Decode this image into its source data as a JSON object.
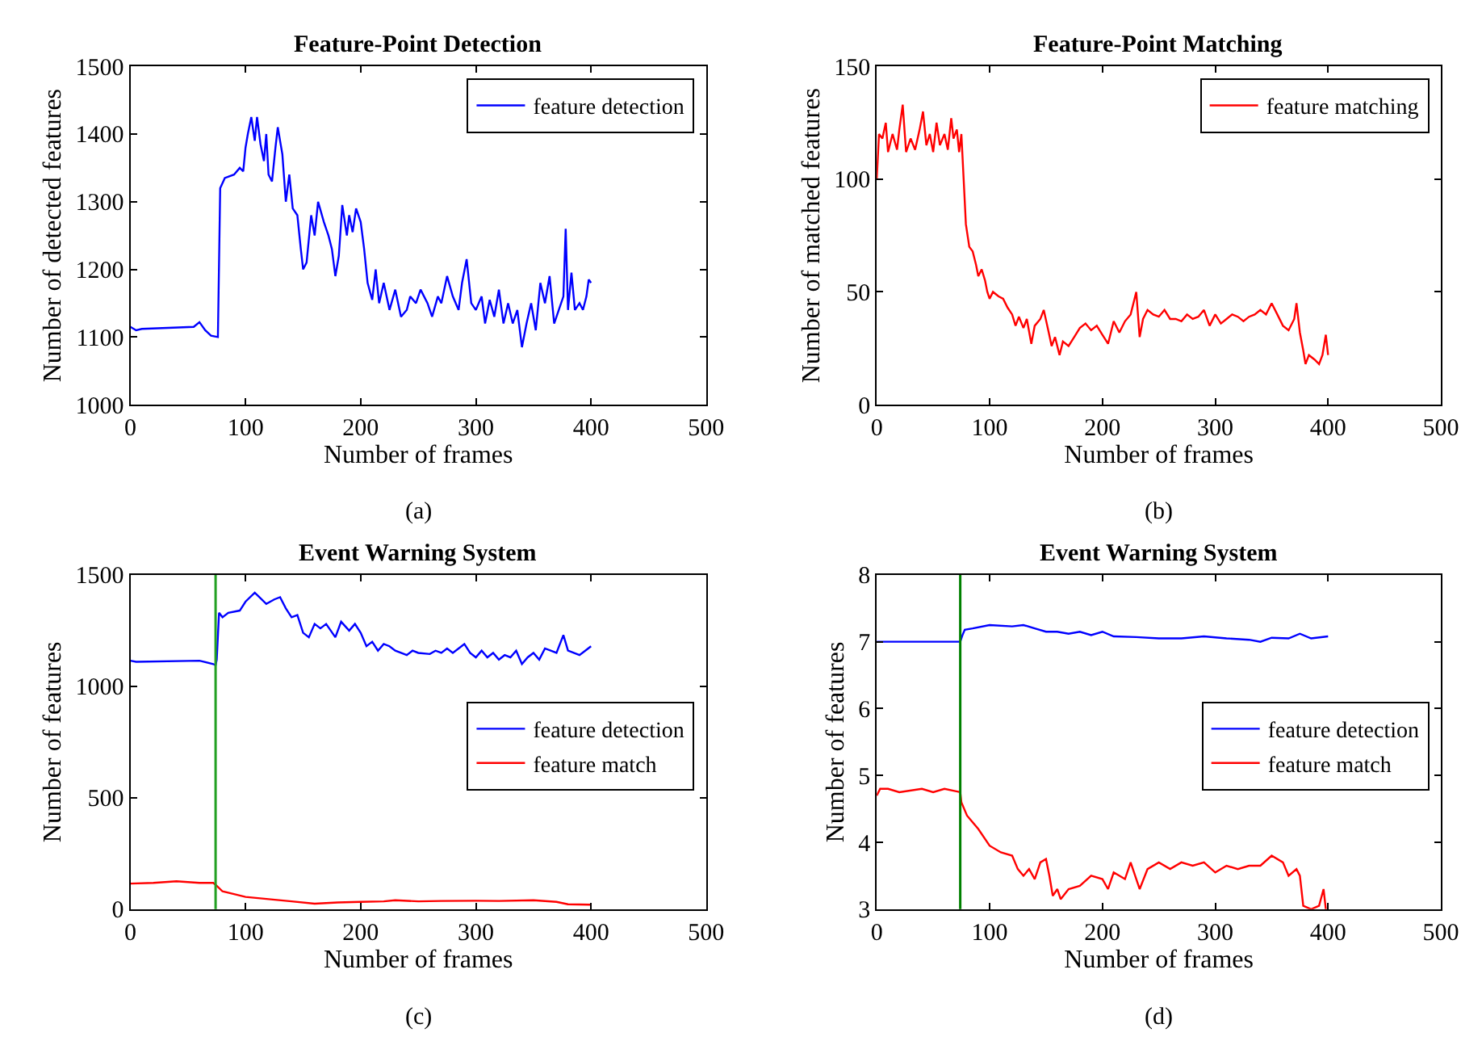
{
  "chart_data": [
    {
      "type": "line",
      "title": "Feature-Point Detection",
      "xlabel": "Number of frames",
      "ylabel": "Number of detected features",
      "annotations": [
        "(a)"
      ],
      "xlim": [
        0,
        500
      ],
      "xticks": [
        0,
        100,
        200,
        300,
        400,
        500
      ],
      "ylim": [
        1000,
        1500
      ],
      "yticks": [
        1000,
        1100,
        1200,
        1300,
        1400,
        1500
      ],
      "legend": "top right",
      "series": [
        {
          "name": "feature detection",
          "color": "#0000ff",
          "x": [
            0,
            5,
            10,
            55,
            60,
            65,
            70,
            76,
            78,
            82,
            90,
            95,
            98,
            100,
            102,
            105,
            108,
            110,
            113,
            116,
            118,
            120,
            123,
            126,
            128,
            132,
            135,
            138,
            141,
            145,
            148,
            150,
            153,
            157,
            160,
            163,
            168,
            172,
            175,
            178,
            181,
            184,
            188,
            190,
            193,
            196,
            200,
            203,
            206,
            210,
            213,
            216,
            220,
            225,
            230,
            235,
            240,
            243,
            248,
            252,
            258,
            262,
            267,
            270,
            275,
            280,
            285,
            288,
            292,
            296,
            300,
            305,
            308,
            312,
            316,
            320,
            324,
            328,
            332,
            336,
            340,
            344,
            348,
            352,
            356,
            360,
            364,
            368,
            372,
            376,
            378,
            380,
            383,
            386,
            390,
            393,
            396,
            398,
            400
          ],
          "values": [
            1115,
            1110,
            1112,
            1115,
            1122,
            1110,
            1102,
            1100,
            1320,
            1335,
            1340,
            1350,
            1345,
            1380,
            1400,
            1425,
            1390,
            1425,
            1385,
            1360,
            1400,
            1340,
            1330,
            1380,
            1410,
            1370,
            1300,
            1340,
            1290,
            1280,
            1230,
            1200,
            1210,
            1280,
            1250,
            1300,
            1270,
            1250,
            1230,
            1190,
            1220,
            1295,
            1250,
            1280,
            1255,
            1290,
            1270,
            1230,
            1180,
            1155,
            1200,
            1150,
            1180,
            1140,
            1170,
            1130,
            1140,
            1160,
            1150,
            1170,
            1150,
            1130,
            1160,
            1150,
            1190,
            1160,
            1140,
            1180,
            1215,
            1150,
            1140,
            1160,
            1120,
            1155,
            1130,
            1170,
            1120,
            1150,
            1120,
            1140,
            1085,
            1120,
            1150,
            1110,
            1180,
            1150,
            1190,
            1120,
            1140,
            1160,
            1260,
            1140,
            1195,
            1140,
            1150,
            1140,
            1160,
            1185,
            1180
          ]
        }
      ]
    },
    {
      "type": "line",
      "title": "Feature-Point Matching",
      "xlabel": "Number of frames",
      "ylabel": "Number of matched features",
      "annotations": [
        "(b)"
      ],
      "xlim": [
        0,
        500
      ],
      "xticks": [
        0,
        100,
        200,
        300,
        400,
        500
      ],
      "ylim": [
        0,
        150
      ],
      "yticks": [
        0,
        50,
        100,
        150
      ],
      "legend": "top right",
      "series": [
        {
          "name": "feature matching",
          "color": "#ff0000",
          "x": [
            0,
            2,
            5,
            8,
            10,
            14,
            18,
            20,
            23,
            26,
            30,
            34,
            38,
            41,
            44,
            47,
            50,
            53,
            56,
            60,
            63,
            66,
            68,
            71,
            73,
            75,
            77,
            79,
            82,
            85,
            88,
            90,
            93,
            96,
            98,
            100,
            103,
            108,
            112,
            116,
            120,
            123,
            126,
            130,
            133,
            137,
            140,
            145,
            148,
            152,
            155,
            158,
            162,
            165,
            170,
            175,
            180,
            185,
            190,
            195,
            200,
            205,
            210,
            215,
            220,
            225,
            230,
            233,
            236,
            240,
            245,
            250,
            255,
            260,
            265,
            270,
            275,
            280,
            285,
            290,
            295,
            300,
            305,
            310,
            315,
            320,
            325,
            330,
            335,
            340,
            345,
            350,
            355,
            360,
            365,
            370,
            372,
            375,
            378,
            380,
            383,
            388,
            392,
            395,
            398,
            400
          ],
          "values": [
            100,
            120,
            118,
            125,
            112,
            120,
            113,
            122,
            133,
            112,
            118,
            113,
            122,
            130,
            115,
            120,
            112,
            125,
            115,
            120,
            113,
            127,
            118,
            122,
            112,
            120,
            100,
            80,
            70,
            68,
            62,
            57,
            60,
            55,
            50,
            47,
            50,
            48,
            47,
            43,
            40,
            35,
            39,
            34,
            38,
            27,
            35,
            38,
            42,
            33,
            26,
            30,
            22,
            28,
            26,
            30,
            34,
            36,
            33,
            35,
            31,
            27,
            37,
            32,
            37,
            40,
            50,
            30,
            38,
            42,
            40,
            39,
            42,
            38,
            38,
            37,
            40,
            38,
            39,
            42,
            35,
            40,
            36,
            38,
            40,
            39,
            37,
            39,
            40,
            42,
            40,
            45,
            40,
            35,
            33,
            38,
            45,
            32,
            24,
            18,
            22,
            20,
            18,
            22,
            31,
            22
          ]
        }
      ]
    },
    {
      "type": "line",
      "title": "Event Warning System",
      "xlabel": "Number of frames",
      "ylabel": "Number of features",
      "annotations": [
        "(c)"
      ],
      "xlim": [
        0,
        500
      ],
      "xticks": [
        0,
        100,
        200,
        300,
        400,
        500
      ],
      "ylim": [
        0,
        1500
      ],
      "yticks": [
        0,
        500,
        1000,
        1500
      ],
      "legend": "right",
      "ref_lines": [
        {
          "axis": "x",
          "value": 74,
          "color": "#22a022"
        }
      ],
      "series": [
        {
          "name": "feature detection",
          "color": "#0000ff",
          "x": [
            0,
            5,
            60,
            72,
            74,
            75,
            77,
            80,
            85,
            95,
            100,
            108,
            112,
            118,
            125,
            130,
            135,
            140,
            145,
            150,
            155,
            160,
            165,
            170,
            178,
            183,
            190,
            195,
            200,
            205,
            210,
            215,
            220,
            225,
            230,
            235,
            240,
            245,
            250,
            260,
            265,
            270,
            275,
            280,
            290,
            295,
            300,
            305,
            310,
            315,
            320,
            325,
            330,
            335,
            340,
            345,
            350,
            355,
            360,
            365,
            370,
            376,
            380,
            385,
            390,
            395,
            400
          ],
          "values": [
            1115,
            1110,
            1115,
            1100,
            1095,
            1120,
            1330,
            1310,
            1330,
            1340,
            1380,
            1420,
            1400,
            1370,
            1390,
            1400,
            1350,
            1310,
            1320,
            1240,
            1220,
            1280,
            1260,
            1280,
            1220,
            1290,
            1250,
            1280,
            1240,
            1180,
            1200,
            1160,
            1190,
            1180,
            1160,
            1150,
            1140,
            1160,
            1150,
            1145,
            1160,
            1150,
            1170,
            1150,
            1190,
            1150,
            1130,
            1160,
            1130,
            1150,
            1120,
            1140,
            1130,
            1160,
            1100,
            1130,
            1150,
            1120,
            1170,
            1160,
            1150,
            1230,
            1160,
            1150,
            1140,
            1160,
            1180
          ]
        },
        {
          "name": "feature match",
          "color": "#ff0000",
          "x": [
            0,
            20,
            40,
            60,
            72,
            75,
            80,
            90,
            100,
            120,
            140,
            160,
            180,
            200,
            220,
            230,
            250,
            270,
            300,
            320,
            350,
            370,
            380,
            400
          ],
          "values": [
            115,
            118,
            125,
            118,
            118,
            105,
            80,
            68,
            55,
            45,
            35,
            25,
            30,
            33,
            35,
            40,
            35,
            37,
            38,
            37,
            40,
            33,
            22,
            20
          ]
        }
      ]
    },
    {
      "type": "line",
      "title": "Event Warning System",
      "xlabel": "Number of frames",
      "ylabel": "Number of features",
      "annotations": [
        "(d)"
      ],
      "xlim": [
        0,
        500
      ],
      "xticks": [
        0,
        100,
        200,
        300,
        400,
        500
      ],
      "ylim": [
        3,
        8
      ],
      "yticks": [
        3,
        4,
        5,
        6,
        7,
        8
      ],
      "legend": "right",
      "ref_lines": [
        {
          "axis": "x",
          "value": 74,
          "color": "#008000"
        }
      ],
      "series": [
        {
          "name": "feature detection",
          "color": "#0000ff",
          "x": [
            0,
            74,
            76,
            78,
            85,
            100,
            120,
            130,
            140,
            150,
            160,
            170,
            180,
            190,
            200,
            210,
            230,
            250,
            270,
            290,
            310,
            330,
            340,
            350,
            365,
            375,
            385,
            400
          ],
          "values": [
            7.0,
            7.0,
            7.1,
            7.18,
            7.2,
            7.25,
            7.23,
            7.25,
            7.2,
            7.15,
            7.15,
            7.12,
            7.15,
            7.1,
            7.15,
            7.08,
            7.07,
            7.05,
            7.05,
            7.08,
            7.05,
            7.03,
            7.0,
            7.06,
            7.05,
            7.12,
            7.05,
            7.08
          ]
        },
        {
          "name": "feature match",
          "color": "#ff0000",
          "x": [
            0,
            3,
            10,
            20,
            40,
            50,
            60,
            74,
            75,
            80,
            90,
            100,
            110,
            120,
            125,
            130,
            135,
            140,
            145,
            150,
            153,
            156,
            160,
            163,
            170,
            180,
            190,
            200,
            205,
            210,
            220,
            225,
            233,
            240,
            250,
            260,
            270,
            280,
            290,
            300,
            310,
            320,
            330,
            340,
            350,
            360,
            365,
            372,
            375,
            378,
            385,
            392,
            396,
            398
          ],
          "values": [
            4.7,
            4.8,
            4.8,
            4.75,
            4.8,
            4.75,
            4.8,
            4.75,
            4.6,
            4.4,
            4.2,
            3.95,
            3.85,
            3.8,
            3.6,
            3.5,
            3.6,
            3.45,
            3.7,
            3.75,
            3.5,
            3.2,
            3.3,
            3.15,
            3.3,
            3.35,
            3.5,
            3.45,
            3.3,
            3.55,
            3.45,
            3.7,
            3.3,
            3.6,
            3.7,
            3.6,
            3.7,
            3.65,
            3.7,
            3.55,
            3.65,
            3.6,
            3.65,
            3.65,
            3.8,
            3.7,
            3.5,
            3.6,
            3.5,
            3.05,
            3.0,
            3.05,
            3.3,
            3.0
          ]
        }
      ]
    }
  ]
}
